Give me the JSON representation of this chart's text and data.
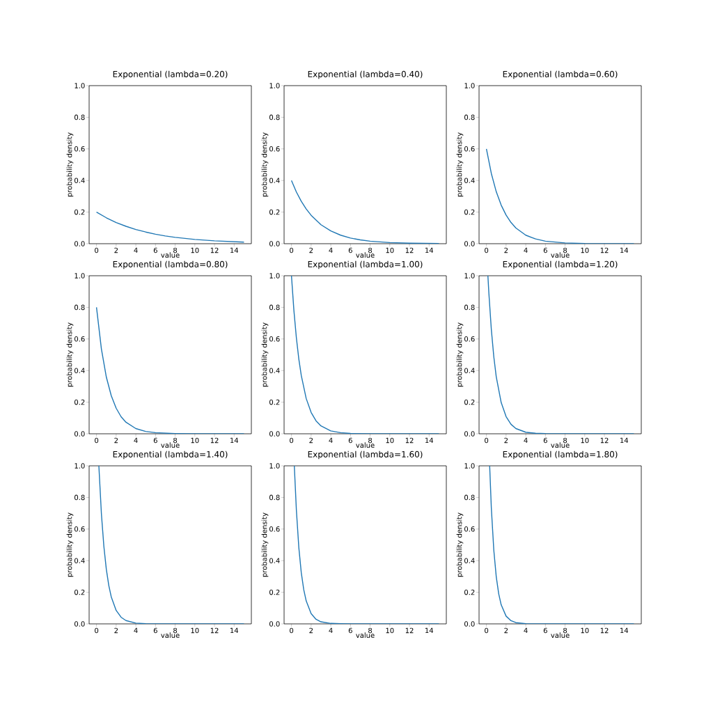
{
  "chart_data": [
    {
      "type": "line",
      "title": "Exponential (lambda=0.20)",
      "xlabel": "value",
      "ylabel": "probability density",
      "color": "#1f77b4",
      "xlim": [
        -0.75,
        15.75
      ],
      "ylim": [
        0,
        1
      ],
      "xticks": [
        0,
        2,
        4,
        6,
        8,
        10,
        12,
        14
      ],
      "yticks": [
        {
          "value": 0,
          "label": "0.0"
        },
        {
          "value": 0.2,
          "label": "0.2"
        },
        {
          "value": 0.4,
          "label": "0.4"
        },
        {
          "value": 0.6,
          "label": "0.6"
        },
        {
          "value": 0.8,
          "label": "0.8"
        },
        {
          "value": 1,
          "label": "1.0"
        }
      ],
      "x": [
        0,
        1,
        2,
        3,
        4,
        5,
        6,
        7,
        8,
        10,
        12,
        15
      ],
      "values": [
        0.2,
        0.164,
        0.134,
        0.11,
        0.09,
        0.074,
        0.06,
        0.049,
        0.04,
        0.027,
        0.018,
        0.01
      ]
    },
    {
      "type": "line",
      "title": "Exponential (lambda=0.40)",
      "xlabel": "value",
      "ylabel": "probability density",
      "color": "#1f77b4",
      "xlim": [
        -0.75,
        15.75
      ],
      "ylim": [
        0,
        1
      ],
      "xticks": [
        0,
        2,
        4,
        6,
        8,
        10,
        12,
        14
      ],
      "yticks": [
        {
          "value": 0,
          "label": "0.0"
        },
        {
          "value": 0.2,
          "label": "0.2"
        },
        {
          "value": 0.4,
          "label": "0.4"
        },
        {
          "value": 0.6,
          "label": "0.6"
        },
        {
          "value": 0.8,
          "label": "0.8"
        },
        {
          "value": 1,
          "label": "1.0"
        }
      ],
      "x": [
        0,
        0.5,
        1,
        1.5,
        2,
        3,
        4,
        5,
        6,
        7,
        8,
        10,
        12,
        15
      ],
      "values": [
        0.4,
        0.327,
        0.268,
        0.22,
        0.18,
        0.12,
        0.081,
        0.054,
        0.036,
        0.024,
        0.016,
        0.007,
        0.003,
        0.001
      ]
    },
    {
      "type": "line",
      "title": "Exponential (lambda=0.60)",
      "xlabel": "value",
      "ylabel": "probability density",
      "color": "#1f77b4",
      "xlim": [
        -0.75,
        15.75
      ],
      "ylim": [
        0,
        1
      ],
      "xticks": [
        0,
        2,
        4,
        6,
        8,
        10,
        12,
        14
      ],
      "yticks": [
        {
          "value": 0,
          "label": "0.0"
        },
        {
          "value": 0.2,
          "label": "0.2"
        },
        {
          "value": 0.4,
          "label": "0.4"
        },
        {
          "value": 0.6,
          "label": "0.6"
        },
        {
          "value": 0.8,
          "label": "0.8"
        },
        {
          "value": 1,
          "label": "1.0"
        }
      ],
      "x": [
        0,
        0.5,
        1,
        1.5,
        2,
        2.5,
        3,
        4,
        5,
        6,
        8,
        10,
        15
      ],
      "values": [
        0.6,
        0.444,
        0.329,
        0.244,
        0.181,
        0.134,
        0.099,
        0.054,
        0.03,
        0.016,
        0.005,
        0.001,
        0
      ]
    },
    {
      "type": "line",
      "title": "Exponential (lambda=0.80)",
      "xlabel": "value",
      "ylabel": "probability density",
      "color": "#1f77b4",
      "xlim": [
        -0.75,
        15.75
      ],
      "ylim": [
        0,
        1
      ],
      "xticks": [
        0,
        2,
        4,
        6,
        8,
        10,
        12,
        14
      ],
      "yticks": [
        {
          "value": 0,
          "label": "0.0"
        },
        {
          "value": 0.2,
          "label": "0.2"
        },
        {
          "value": 0.4,
          "label": "0.4"
        },
        {
          "value": 0.6,
          "label": "0.6"
        },
        {
          "value": 0.8,
          "label": "0.8"
        },
        {
          "value": 1,
          "label": "1.0"
        }
      ],
      "x": [
        0,
        0.5,
        1,
        1.5,
        2,
        2.5,
        3,
        4,
        5,
        6,
        8,
        10,
        15
      ],
      "values": [
        0.8,
        0.536,
        0.359,
        0.241,
        0.162,
        0.108,
        0.073,
        0.033,
        0.015,
        0.007,
        0.001,
        0,
        0
      ]
    },
    {
      "type": "line",
      "title": "Exponential (lambda=1.00)",
      "xlabel": "value",
      "ylabel": "probability density",
      "color": "#1f77b4",
      "xlim": [
        -0.75,
        15.75
      ],
      "ylim": [
        0,
        1
      ],
      "xticks": [
        0,
        2,
        4,
        6,
        8,
        10,
        12,
        14
      ],
      "yticks": [
        {
          "value": 0,
          "label": "0.0"
        },
        {
          "value": 0.2,
          "label": "0.2"
        },
        {
          "value": 0.4,
          "label": "0.4"
        },
        {
          "value": 0.6,
          "label": "0.6"
        },
        {
          "value": 0.8,
          "label": "0.8"
        },
        {
          "value": 1,
          "label": "1.0"
        }
      ],
      "x": [
        0,
        0.25,
        0.5,
        0.75,
        1,
        1.5,
        2,
        2.5,
        3,
        4,
        5,
        6,
        8,
        15
      ],
      "values": [
        1,
        0.779,
        0.607,
        0.472,
        0.368,
        0.223,
        0.135,
        0.082,
        0.05,
        0.018,
        0.007,
        0.002,
        0,
        0
      ]
    },
    {
      "type": "line",
      "title": "Exponential (lambda=1.20)",
      "xlabel": "value",
      "ylabel": "probability density",
      "color": "#1f77b4",
      "xlim": [
        -0.75,
        15.75
      ],
      "ylim": [
        0,
        1
      ],
      "xticks": [
        0,
        2,
        4,
        6,
        8,
        10,
        12,
        14
      ],
      "yticks": [
        {
          "value": 0,
          "label": "0.0"
        },
        {
          "value": 0.2,
          "label": "0.2"
        },
        {
          "value": 0.4,
          "label": "0.4"
        },
        {
          "value": 0.6,
          "label": "0.6"
        },
        {
          "value": 0.8,
          "label": "0.8"
        },
        {
          "value": 1,
          "label": "1.0"
        }
      ],
      "x": [
        0.15,
        0.25,
        0.5,
        0.75,
        1,
        1.5,
        2,
        2.5,
        3,
        4,
        5,
        6,
        8,
        15
      ],
      "values": [
        1,
        0.889,
        0.659,
        0.488,
        0.361,
        0.198,
        0.109,
        0.06,
        0.033,
        0.01,
        0.003,
        0.001,
        0,
        0
      ]
    },
    {
      "type": "line",
      "title": "Exponential (lambda=1.40)",
      "xlabel": "value",
      "ylabel": "probability density",
      "color": "#1f77b4",
      "xlim": [
        -0.75,
        15.75
      ],
      "ylim": [
        0,
        1
      ],
      "xticks": [
        0,
        2,
        4,
        6,
        8,
        10,
        12,
        14
      ],
      "yticks": [
        {
          "value": 0,
          "label": "0.0"
        },
        {
          "value": 0.2,
          "label": "0.2"
        },
        {
          "value": 0.4,
          "label": "0.4"
        },
        {
          "value": 0.6,
          "label": "0.6"
        },
        {
          "value": 0.8,
          "label": "0.8"
        },
        {
          "value": 1,
          "label": "1.0"
        }
      ],
      "x": [
        0.24,
        0.5,
        0.75,
        1,
        1.25,
        1.5,
        2,
        2.5,
        3,
        4,
        5,
        6,
        15
      ],
      "values": [
        1,
        0.695,
        0.49,
        0.345,
        0.243,
        0.171,
        0.085,
        0.042,
        0.021,
        0.005,
        0.001,
        0,
        0
      ]
    },
    {
      "type": "line",
      "title": "Exponential (lambda=1.60)",
      "xlabel": "value",
      "ylabel": "probability density",
      "color": "#1f77b4",
      "xlim": [
        -0.75,
        15.75
      ],
      "ylim": [
        0,
        1
      ],
      "xticks": [
        0,
        2,
        4,
        6,
        8,
        10,
        12,
        14
      ],
      "yticks": [
        {
          "value": 0,
          "label": "0.0"
        },
        {
          "value": 0.2,
          "label": "0.2"
        },
        {
          "value": 0.4,
          "label": "0.4"
        },
        {
          "value": 0.6,
          "label": "0.6"
        },
        {
          "value": 0.8,
          "label": "0.8"
        },
        {
          "value": 1,
          "label": "1.0"
        }
      ],
      "x": [
        0.29,
        0.5,
        0.75,
        1,
        1.25,
        1.5,
        2,
        2.5,
        3,
        4,
        5,
        6,
        15
      ],
      "values": [
        1,
        0.719,
        0.482,
        0.323,
        0.216,
        0.145,
        0.065,
        0.029,
        0.013,
        0.003,
        0.001,
        0,
        0
      ]
    },
    {
      "type": "line",
      "title": "Exponential (lambda=1.80)",
      "xlabel": "value",
      "ylabel": "probability density",
      "color": "#1f77b4",
      "xlim": [
        -0.75,
        15.75
      ],
      "ylim": [
        0,
        1
      ],
      "xticks": [
        0,
        2,
        4,
        6,
        8,
        10,
        12,
        14
      ],
      "yticks": [
        {
          "value": 0,
          "label": "0.0"
        },
        {
          "value": 0.2,
          "label": "0.2"
        },
        {
          "value": 0.4,
          "label": "0.4"
        },
        {
          "value": 0.6,
          "label": "0.6"
        },
        {
          "value": 0.8,
          "label": "0.8"
        },
        {
          "value": 1,
          "label": "1.0"
        }
      ],
      "x": [
        0.33,
        0.5,
        0.75,
        1,
        1.25,
        1.5,
        2,
        2.5,
        3,
        4,
        5,
        15
      ],
      "values": [
        1,
        0.732,
        0.467,
        0.298,
        0.19,
        0.121,
        0.049,
        0.02,
        0.008,
        0.001,
        0,
        0
      ]
    }
  ]
}
